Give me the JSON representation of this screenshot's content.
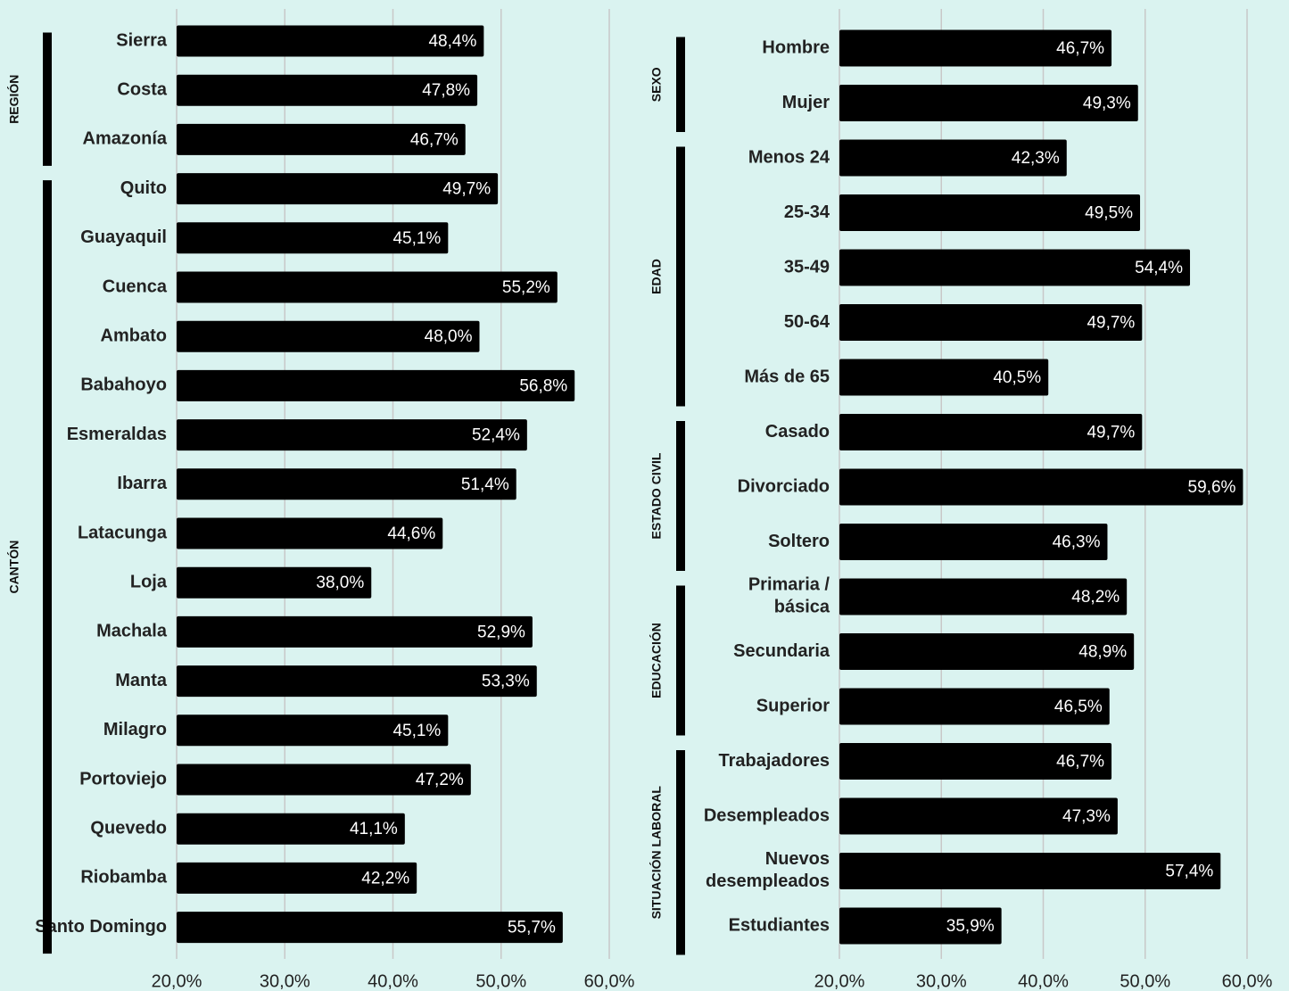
{
  "chart_data": [
    {
      "type": "bar",
      "orientation": "horizontal",
      "color": "#000000",
      "grid": true,
      "xlim": [
        20,
        60
      ],
      "xticks": [
        {
          "value": 20,
          "label": "20,0%"
        },
        {
          "value": 30,
          "label": "30,0%"
        },
        {
          "value": 40,
          "label": "40,0%"
        },
        {
          "value": 50,
          "label": "50,0%"
        },
        {
          "value": 60,
          "label": "60,0%"
        }
      ],
      "groups": [
        {
          "name": "REGIÓN",
          "categories": [
            "Sierra",
            "Costa",
            "Amazonía"
          ],
          "values": [
            48.4,
            47.8,
            46.7
          ],
          "value_labels": [
            "48,4%",
            "47,8%",
            "46,7%"
          ]
        },
        {
          "name": "CANTÓN",
          "categories": [
            "Quito",
            "Guayaquil",
            "Cuenca",
            "Ambato",
            "Babahoyo",
            "Esmeraldas",
            "Ibarra",
            "Latacunga",
            "Loja",
            "Machala",
            "Manta",
            "Milagro",
            "Portoviejo",
            "Quevedo",
            "Riobamba",
            "Santo Domingo"
          ],
          "values": [
            49.7,
            45.1,
            55.2,
            48.0,
            56.8,
            52.4,
            51.4,
            44.6,
            38.0,
            52.9,
            53.3,
            45.1,
            47.2,
            41.1,
            42.2,
            55.7
          ],
          "value_labels": [
            "49,7%",
            "45,1%",
            "55,2%",
            "48,0%",
            "56,8%",
            "52,4%",
            "51,4%",
            "44,6%",
            "38,0%",
            "52,9%",
            "53,3%",
            "45,1%",
            "47,2%",
            "41,1%",
            "42,2%",
            "55,7%"
          ]
        }
      ]
    },
    {
      "type": "bar",
      "orientation": "horizontal",
      "color": "#000000",
      "grid": true,
      "xlim": [
        20,
        60
      ],
      "xticks": [
        {
          "value": 20,
          "label": "20,0%"
        },
        {
          "value": 30,
          "label": "30,0%"
        },
        {
          "value": 40,
          "label": "40,0%"
        },
        {
          "value": 50,
          "label": "50,0%"
        },
        {
          "value": 60,
          "label": "60,0%"
        }
      ],
      "groups": [
        {
          "name": "SEXO",
          "categories": [
            "Hombre",
            "Mujer"
          ],
          "values": [
            46.7,
            49.3
          ],
          "value_labels": [
            "46,7%",
            "49,3%"
          ]
        },
        {
          "name": "EDAD",
          "categories": [
            "Menos 24",
            "25-34",
            "35-49",
            "50-64",
            "Más de 65"
          ],
          "values": [
            42.3,
            49.5,
            54.4,
            49.7,
            40.5
          ],
          "value_labels": [
            "42,3%",
            "49,5%",
            "54,4%",
            "49,7%",
            "40,5%"
          ]
        },
        {
          "name": "ESTADO CIVIL",
          "categories": [
            "Casado",
            "Divorciado",
            "Soltero"
          ],
          "values": [
            49.7,
            59.6,
            46.3
          ],
          "value_labels": [
            "49,7%",
            "59,6%",
            "46,3%"
          ]
        },
        {
          "name": "EDUCACIÓN",
          "categories": [
            "Primaria / básica",
            "Secundaria",
            "Superior"
          ],
          "values": [
            48.2,
            48.9,
            46.5
          ],
          "value_labels": [
            "48,2%",
            "48,9%",
            "46,5%"
          ]
        },
        {
          "name": "SITUACIÓN LABORAL",
          "categories": [
            "Trabajadores",
            "Desempleados",
            "Nuevos desempleados",
            "Estudiantes"
          ],
          "values": [
            46.7,
            47.3,
            57.4,
            35.9
          ],
          "value_labels": [
            "46,7%",
            "47,3%",
            "57,4%",
            "35,9%"
          ]
        }
      ]
    }
  ]
}
